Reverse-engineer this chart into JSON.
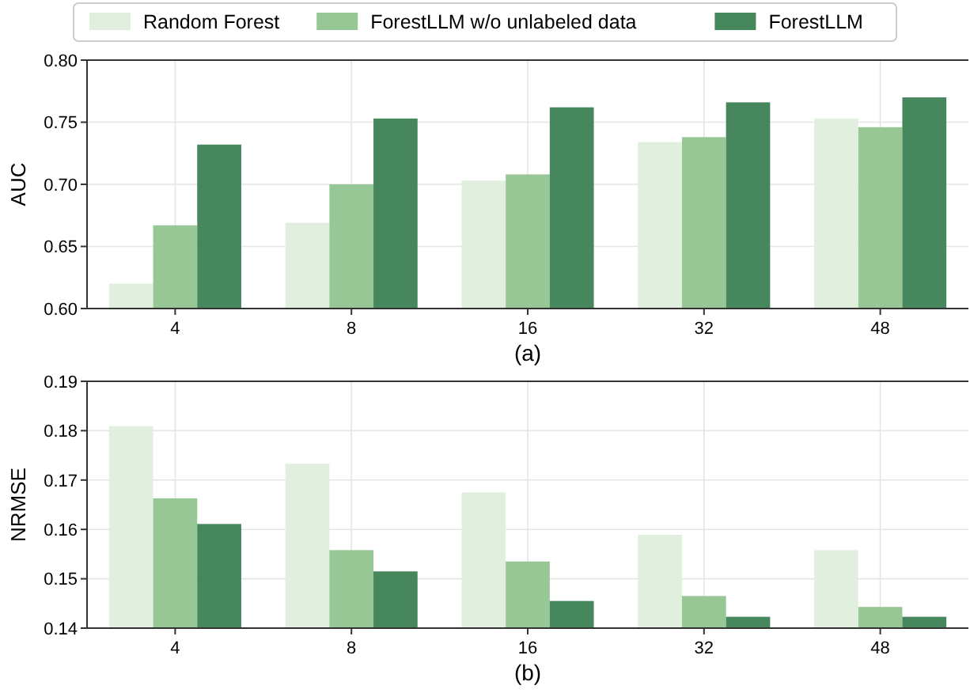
{
  "chart_data": [
    {
      "type": "bar",
      "categories": [
        "4",
        "8",
        "16",
        "32",
        "48"
      ],
      "xlabel": "(a)",
      "ylabel": "AUC",
      "ylim": [
        0.6,
        0.8
      ],
      "yticks": [
        {
          "value": 0.6,
          "label": "0.60"
        },
        {
          "value": 0.65,
          "label": "0.65"
        },
        {
          "value": 0.7,
          "label": "0.70"
        },
        {
          "value": 0.75,
          "label": "0.75"
        },
        {
          "value": 0.8,
          "label": "0.80"
        }
      ],
      "grid": true,
      "legend": "top",
      "series": [
        {
          "name": "Random Forest",
          "color": "#e1f0de",
          "values": [
            0.62,
            0.669,
            0.703,
            0.734,
            0.753
          ]
        },
        {
          "name": "ForestLLM w/o unlabeled data",
          "color": "#98c796",
          "values": [
            0.667,
            0.7,
            0.708,
            0.738,
            0.746
          ]
        },
        {
          "name": "ForestLLM",
          "color": "#47875d",
          "values": [
            0.732,
            0.753,
            0.762,
            0.766,
            0.77
          ]
        }
      ]
    },
    {
      "type": "bar",
      "categories": [
        "4",
        "8",
        "16",
        "32",
        "48"
      ],
      "xlabel": "(b)",
      "ylabel": "NRMSE",
      "ylim": [
        0.14,
        0.19
      ],
      "yticks": [
        {
          "value": 0.14,
          "label": "0.14"
        },
        {
          "value": 0.15,
          "label": "0.15"
        },
        {
          "value": 0.16,
          "label": "0.16"
        },
        {
          "value": 0.17,
          "label": "0.17"
        },
        {
          "value": 0.18,
          "label": "0.18"
        },
        {
          "value": 0.19,
          "label": "0.19"
        }
      ],
      "grid": true,
      "series": [
        {
          "color": "#e1f0de",
          "values": [
            0.1809,
            0.1733,
            0.1675,
            0.1589,
            0.1558
          ]
        },
        {
          "color": "#98c796",
          "values": [
            0.1663,
            0.1558,
            0.1535,
            0.1465,
            0.1443
          ]
        },
        {
          "color": "#47875d",
          "values": [
            0.1611,
            0.1515,
            0.1455,
            0.1423,
            0.1423
          ]
        }
      ]
    }
  ]
}
